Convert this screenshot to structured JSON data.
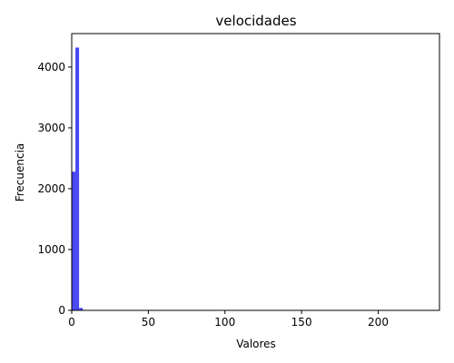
{
  "chart_data": {
    "type": "bar",
    "title": "velocidades",
    "xlabel": "Valores",
    "ylabel": "Frecuencia",
    "xlim": [
      0,
      240
    ],
    "ylim": [
      0,
      4550
    ],
    "xticks": [
      0,
      50,
      100,
      150,
      200
    ],
    "yticks": [
      0,
      1000,
      2000,
      3000,
      4000
    ],
    "bar_color": "#4848f5",
    "grid": false,
    "bins": [
      {
        "x0": 0.0,
        "x1": 2.4,
        "count": 2280
      },
      {
        "x0": 2.4,
        "x1": 4.8,
        "count": 4320
      },
      {
        "x0": 4.8,
        "x1": 7.2,
        "count": 40
      },
      {
        "x0": 7.2,
        "x1": 9.6,
        "count": 8
      }
    ]
  }
}
